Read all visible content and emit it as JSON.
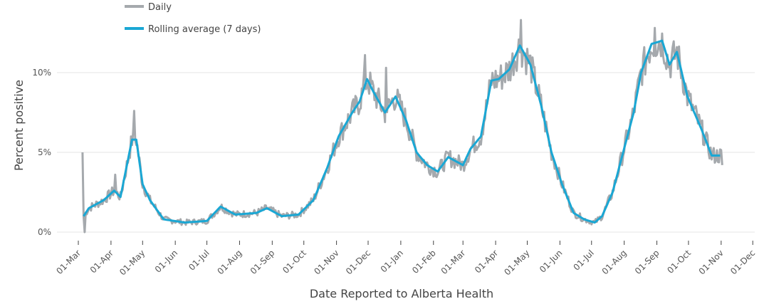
{
  "chart_data": {
    "type": "line",
    "title": "",
    "xlabel": "Date Reported to Alberta Health",
    "ylabel": "Percent positive",
    "x_units": "days since first tick (01-Mar)",
    "xlim": [
      0,
      640
    ],
    "ylim": [
      0,
      14
    ],
    "yticks": [
      {
        "v": 0,
        "label": "0%"
      },
      {
        "v": 5,
        "label": "5%"
      },
      {
        "v": 10,
        "label": "10%"
      }
    ],
    "xticks": [
      "01-Mar",
      "01-Apr",
      "01-May",
      "01-Jun",
      "01-Jul",
      "01-Aug",
      "01-Sep",
      "01-Oct",
      "01-Nov",
      "01-Dec",
      "01-Jan",
      "01-Feb",
      "01-Mar",
      "01-Apr",
      "01-May",
      "01-Jun",
      "01-Jul",
      "01-Aug",
      "01-Sep",
      "01-Oct",
      "01-Nov",
      "01-Dec"
    ],
    "xtick_days": [
      0,
      31,
      61,
      92,
      122,
      153,
      184,
      214,
      245,
      275,
      306,
      337,
      365,
      396,
      426,
      457,
      487,
      518,
      549,
      579,
      610,
      640
    ],
    "grid": true,
    "legend": {
      "placement": "top-left",
      "entries": [
        "Daily",
        "Rolling average (7 days)"
      ]
    },
    "colors": {
      "daily": "#a5a9ad",
      "rolling": "#1aa7d4"
    },
    "series": [
      {
        "name": "Rolling average (7 days)",
        "x": [
          5,
          10,
          24,
          34,
          40,
          47,
          51,
          55,
          61,
          68,
          81,
          101,
          122,
          135,
          149,
          169,
          179,
          193,
          209,
          223,
          236,
          247,
          260,
          267,
          274,
          280,
          291,
          301,
          311,
          321,
          331,
          341,
          351,
          365,
          372,
          382,
          392,
          399,
          409,
          419,
          429,
          439,
          449,
          459,
          470,
          480,
          490,
          497,
          507,
          517,
          527,
          534,
          544,
          554,
          561,
          568,
          578,
          591,
          601,
          609
        ],
        "y": [
          1.0,
          1.5,
          2.0,
          2.6,
          2.2,
          4.5,
          5.8,
          5.8,
          3.0,
          2.0,
          0.8,
          0.6,
          0.7,
          1.6,
          1.1,
          1.2,
          1.5,
          1.0,
          1.1,
          2.0,
          4.0,
          6.0,
          7.5,
          8.2,
          9.6,
          8.8,
          7.5,
          8.5,
          7.0,
          5.0,
          4.2,
          3.8,
          4.7,
          4.2,
          5.2,
          6.0,
          9.5,
          9.6,
          10.2,
          11.7,
          10.5,
          8.0,
          5.0,
          3.0,
          1.2,
          0.8,
          0.6,
          1.0,
          2.5,
          5.0,
          7.5,
          10.0,
          11.8,
          12.0,
          10.5,
          11.3,
          8.5,
          6.5,
          4.8,
          4.8
        ]
      },
      {
        "name": "Daily",
        "spikes_x": [
          4,
          6,
          35,
          53,
          272,
          292,
          420,
          547,
          611
        ],
        "spikes_y": [
          5.0,
          0.0,
          3.6,
          7.6,
          11.1,
          10.3,
          13.3,
          12.8,
          4.2
        ]
      }
    ]
  }
}
